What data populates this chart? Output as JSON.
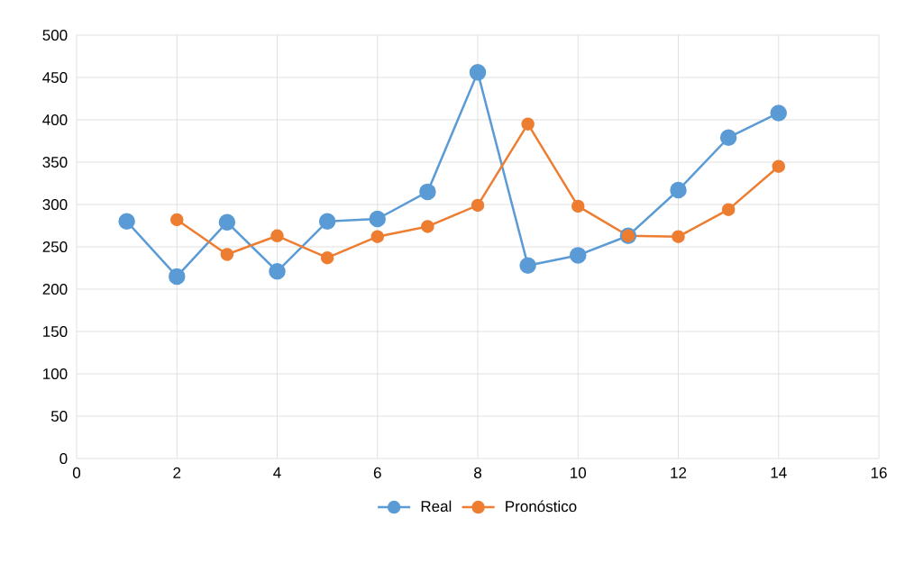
{
  "chart_data": {
    "type": "line",
    "x": [
      1,
      2,
      3,
      4,
      5,
      6,
      7,
      8,
      9,
      10,
      11,
      12,
      13,
      14
    ],
    "series": [
      {
        "name": "Real",
        "color": "#5b9bd5",
        "values": [
          280,
          215,
          279,
          221,
          280,
          283,
          315,
          456,
          228,
          240,
          263,
          317,
          379,
          408
        ]
      },
      {
        "name": "Pronóstico",
        "color": "#ed7d31",
        "x": [
          2,
          3,
          4,
          5,
          6,
          7,
          8,
          9,
          10,
          11,
          12,
          13,
          14
        ],
        "values": [
          282,
          241,
          263,
          237,
          262,
          274,
          299,
          395,
          298,
          263,
          262,
          294,
          345
        ]
      }
    ],
    "xlim": [
      0,
      16
    ],
    "xticks": [
      0,
      2,
      4,
      6,
      8,
      10,
      12,
      14,
      16
    ],
    "ylim": [
      0,
      500
    ],
    "yticks": [
      0,
      50,
      100,
      150,
      200,
      250,
      300,
      350,
      400,
      450,
      500
    ],
    "grid": true,
    "legend": "bottom",
    "marker": "circle",
    "line_style": "solid"
  }
}
